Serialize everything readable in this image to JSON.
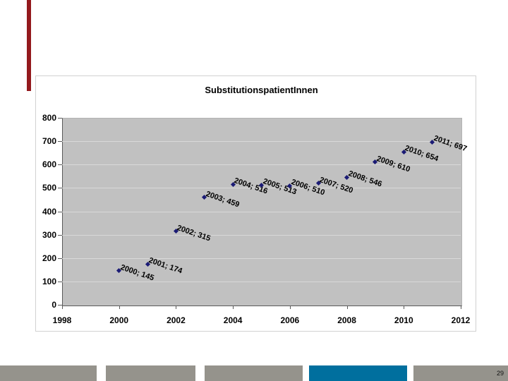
{
  "slide": {
    "accent_bar_color": "#93191d"
  },
  "footer": {
    "page_number": "29",
    "gray_color": "#95938c",
    "accent_color": "#006f9e",
    "segments": [
      "gray",
      "gray",
      "gray",
      "accent",
      "gray"
    ]
  },
  "chart_data": {
    "type": "scatter",
    "title": "SubstitutionspatientInnen",
    "xlabel": "",
    "ylabel": "",
    "xlim": [
      1998,
      2012
    ],
    "ylim": [
      0,
      800
    ],
    "grid": true,
    "legend": "none",
    "plot_bg_color": "#c1c1c1",
    "gridline_color": "#d9d9d9",
    "marker_color": "#1b1b75",
    "xticks": [
      "1998",
      "2000",
      "2002",
      "2004",
      "2006",
      "2008",
      "2010",
      "2012"
    ],
    "yticks": [
      "0",
      "100",
      "200",
      "300",
      "400",
      "500",
      "600",
      "700",
      "800"
    ],
    "points": [
      {
        "year": 2000,
        "value": 145,
        "label": "2000; 145"
      },
      {
        "year": 2001,
        "value": 174,
        "label": "2001; 174"
      },
      {
        "year": 2002,
        "value": 315,
        "label": "2002; 315"
      },
      {
        "year": 2003,
        "value": 459,
        "label": "2003; 459"
      },
      {
        "year": 2004,
        "value": 516,
        "label": "2004; 516"
      },
      {
        "year": 2005,
        "value": 513,
        "label": "2005; 513"
      },
      {
        "year": 2006,
        "value": 510,
        "label": "2006; 510"
      },
      {
        "year": 2007,
        "value": 520,
        "label": "2007; 520"
      },
      {
        "year": 2008,
        "value": 546,
        "label": "2008; 546"
      },
      {
        "year": 2009,
        "value": 610,
        "label": "2009; 610"
      },
      {
        "year": 2010,
        "value": 654,
        "label": "2010; 654"
      },
      {
        "year": 2011,
        "value": 697,
        "label": "2011; 697"
      }
    ]
  }
}
